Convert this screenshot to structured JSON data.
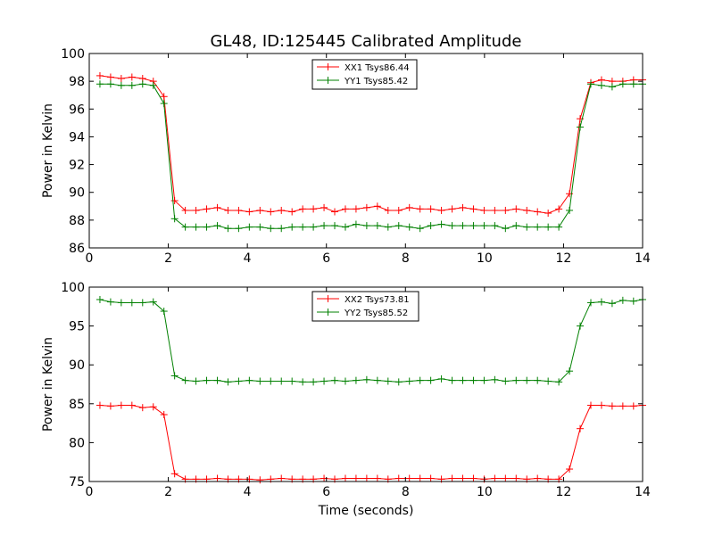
{
  "figure_title": "GL48, ID:125445 Calibrated Amplitude",
  "chart_data": [
    {
      "type": "line",
      "title": "GL48, ID:125445 Calibrated Amplitude",
      "xlabel": "",
      "ylabel": "Power in Kelvin",
      "xlim": [
        0,
        14
      ],
      "ylim": [
        86,
        100
      ],
      "xticks": [
        0,
        2,
        4,
        6,
        8,
        10,
        12,
        14
      ],
      "yticks": [
        86,
        88,
        90,
        92,
        94,
        96,
        98,
        100
      ],
      "grid": false,
      "legend_position": "top-center",
      "x": [
        0.27,
        0.54,
        0.81,
        1.08,
        1.35,
        1.62,
        1.89,
        2.16,
        2.43,
        2.7,
        2.97,
        3.24,
        3.51,
        3.78,
        4.05,
        4.32,
        4.59,
        4.86,
        5.13,
        5.4,
        5.67,
        5.94,
        6.21,
        6.48,
        6.75,
        7.02,
        7.29,
        7.56,
        7.83,
        8.1,
        8.37,
        8.64,
        8.91,
        9.18,
        9.45,
        9.72,
        9.99,
        10.26,
        10.53,
        10.8,
        11.07,
        11.34,
        11.61,
        11.88,
        12.15,
        12.42,
        12.69,
        12.96,
        13.23,
        13.5,
        13.77,
        14.0
      ],
      "series": [
        {
          "name": "XX1 Tsys86.44",
          "color": "#ff0000",
          "values": [
            98.4,
            98.3,
            98.2,
            98.3,
            98.2,
            98.0,
            96.9,
            89.4,
            88.7,
            88.7,
            88.8,
            88.9,
            88.7,
            88.7,
            88.6,
            88.7,
            88.6,
            88.7,
            88.6,
            88.8,
            88.8,
            88.9,
            88.6,
            88.8,
            88.8,
            88.9,
            89.0,
            88.7,
            88.7,
            88.9,
            88.8,
            88.8,
            88.7,
            88.8,
            88.9,
            88.8,
            88.7,
            88.7,
            88.7,
            88.8,
            88.7,
            88.6,
            88.5,
            88.8,
            89.9,
            95.3,
            97.9,
            98.1,
            98.0,
            98.0,
            98.1,
            98.1
          ]
        },
        {
          "name": "YY1 Tsys85.42",
          "color": "#008000",
          "values": [
            97.8,
            97.8,
            97.7,
            97.7,
            97.8,
            97.7,
            96.4,
            88.1,
            87.5,
            87.5,
            87.5,
            87.6,
            87.4,
            87.4,
            87.5,
            87.5,
            87.4,
            87.4,
            87.5,
            87.5,
            87.5,
            87.6,
            87.6,
            87.5,
            87.7,
            87.6,
            87.6,
            87.5,
            87.6,
            87.5,
            87.4,
            87.6,
            87.7,
            87.6,
            87.6,
            87.6,
            87.6,
            87.6,
            87.4,
            87.6,
            87.5,
            87.5,
            87.5,
            87.5,
            88.7,
            94.7,
            97.8,
            97.7,
            97.6,
            97.8,
            97.8,
            97.8
          ]
        }
      ]
    },
    {
      "type": "line",
      "title": "",
      "xlabel": "Time (seconds)",
      "ylabel": "Power in Kelvin",
      "xlim": [
        0,
        14
      ],
      "ylim": [
        75,
        100
      ],
      "xticks": [
        0,
        2,
        4,
        6,
        8,
        10,
        12,
        14
      ],
      "yticks": [
        75,
        80,
        85,
        90,
        95,
        100
      ],
      "grid": false,
      "legend_position": "top-center",
      "x": [
        0.27,
        0.54,
        0.81,
        1.08,
        1.35,
        1.62,
        1.89,
        2.16,
        2.43,
        2.7,
        2.97,
        3.24,
        3.51,
        3.78,
        4.05,
        4.32,
        4.59,
        4.86,
        5.13,
        5.4,
        5.67,
        5.94,
        6.21,
        6.48,
        6.75,
        7.02,
        7.29,
        7.56,
        7.83,
        8.1,
        8.37,
        8.64,
        8.91,
        9.18,
        9.45,
        9.72,
        9.99,
        10.26,
        10.53,
        10.8,
        11.07,
        11.34,
        11.61,
        11.88,
        12.15,
        12.42,
        12.69,
        12.96,
        13.23,
        13.5,
        13.77,
        14.0
      ],
      "series": [
        {
          "name": "XX2 Tsys73.81",
          "color": "#ff0000",
          "values": [
            84.8,
            84.7,
            84.8,
            84.8,
            84.5,
            84.6,
            83.6,
            76.0,
            75.3,
            75.3,
            75.3,
            75.4,
            75.3,
            75.3,
            75.3,
            75.2,
            75.3,
            75.4,
            75.3,
            75.3,
            75.3,
            75.4,
            75.3,
            75.4,
            75.4,
            75.4,
            75.4,
            75.3,
            75.4,
            75.4,
            75.4,
            75.4,
            75.3,
            75.4,
            75.4,
            75.4,
            75.3,
            75.4,
            75.4,
            75.4,
            75.3,
            75.4,
            75.3,
            75.3,
            76.6,
            81.8,
            84.8,
            84.8,
            84.7,
            84.7,
            84.7,
            84.8
          ]
        },
        {
          "name": "YY2 Tsys85.52",
          "color": "#008000",
          "values": [
            98.4,
            98.1,
            98.0,
            98.0,
            98.0,
            98.1,
            96.9,
            88.6,
            88.0,
            87.9,
            88.0,
            88.0,
            87.8,
            87.9,
            88.0,
            87.9,
            87.9,
            87.9,
            87.9,
            87.8,
            87.8,
            87.9,
            88.0,
            87.9,
            88.0,
            88.1,
            88.0,
            87.9,
            87.8,
            87.9,
            88.0,
            88.0,
            88.2,
            88.0,
            88.0,
            88.0,
            88.0,
            88.1,
            87.9,
            88.0,
            88.0,
            88.0,
            87.9,
            87.8,
            89.2,
            95.0,
            98.0,
            98.1,
            97.9,
            98.3,
            98.2,
            98.4
          ]
        }
      ]
    }
  ]
}
